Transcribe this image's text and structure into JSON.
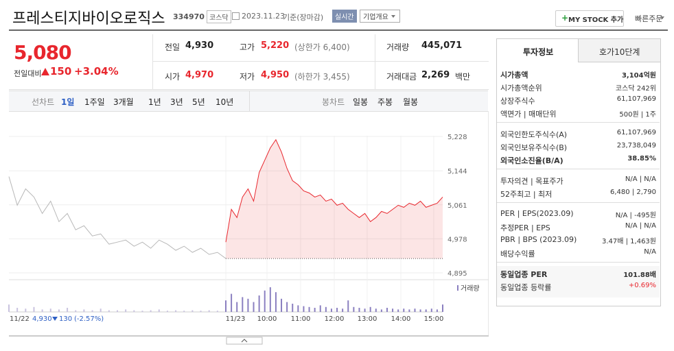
{
  "header": {
    "title": "프레스티지바이오로직스",
    "code": "334970",
    "market": "코스닥",
    "date": "2023.11.23",
    "basis": "기준(장마감)",
    "realtime": "실시간",
    "company_info": "기업개요",
    "my_stock": "MY STOCK 추가",
    "quick_order": "빠른주문"
  },
  "quote": {
    "price": "5,080",
    "change_label": "전일대비",
    "change": "150",
    "change_pct": "+3.04%",
    "rows": [
      [
        {
          "label": "전일",
          "value": "4,930"
        },
        {
          "label": "고가",
          "value": "5,220",
          "note": "(상한가 6,400)"
        },
        {
          "label": "거래량",
          "value": "445,071"
        }
      ],
      [
        {
          "label": "시가",
          "value": "4,970"
        },
        {
          "label": "저가",
          "value": "4,950",
          "note": "(하한가 3,455)"
        },
        {
          "label": "거래대금",
          "value": "2,269",
          "note": "백만"
        }
      ]
    ]
  },
  "chart_tabs": {
    "line_label": "선차트",
    "line_periods": [
      "1일",
      "1주일",
      "3개월",
      "1년",
      "3년",
      "5년",
      "10년"
    ],
    "candle_label": "봉차트",
    "candle_periods": [
      "일봉",
      "주봉",
      "월봉"
    ]
  },
  "chart_data": {
    "type": "line",
    "ylim": [
      4895,
      5228
    ],
    "yticks": [
      {
        "value": 5228,
        "label": "5,228"
      },
      {
        "value": 5144,
        "label": "5,144"
      },
      {
        "value": 5061,
        "label": "5,061"
      },
      {
        "value": 4978,
        "label": "4,978"
      },
      {
        "value": 4895,
        "label": "4,895"
      }
    ],
    "x_labels": [
      "11/23",
      "10:00",
      "11:00",
      "12:00",
      "13:00",
      "14:00",
      "15:00"
    ],
    "prev_close": 4930,
    "volume_label": "거래량",
    "prev_summary": {
      "date": "11/22",
      "close": "4,930",
      "change": "130",
      "change_pct": "(-2.57%)"
    },
    "series": [
      {
        "color": "#b8b8b8",
        "volume_color": "#c9c3df",
        "values": [
          5130,
          5060,
          5100,
          5080,
          5040,
          5070,
          5020,
          5040,
          5000,
          5010,
          4985,
          4990,
          4965,
          4970,
          4975,
          4960,
          4970,
          4955,
          4975,
          4965,
          4950,
          4960,
          4945,
          4955,
          4940,
          4945,
          4930
        ],
        "volume": [
          9000,
          5000,
          4000,
          6000,
          3000,
          4000,
          3000,
          5000,
          2000,
          3000,
          2000,
          4000,
          2000,
          2000,
          3000,
          2000,
          1500,
          2000,
          3000,
          1500,
          2000,
          1500,
          2000,
          1500,
          2000,
          1500,
          3000
        ]
      },
      {
        "color": "#e8262d",
        "volume_color": "#8a7fc0",
        "values": [
          4970,
          5050,
          5030,
          5080,
          5100,
          5070,
          5140,
          5170,
          5200,
          5220,
          5190,
          5150,
          5120,
          5110,
          5095,
          5090,
          5080,
          5085,
          5070,
          5075,
          5060,
          5065,
          5050,
          5040,
          5030,
          5040,
          5020,
          5030,
          5045,
          5040,
          5050,
          5060,
          5055,
          5065,
          5060,
          5070,
          5055,
          5060,
          5065,
          5080
        ],
        "volume": [
          14000,
          22000,
          12000,
          18000,
          16000,
          12000,
          20000,
          26000,
          30000,
          24000,
          16000,
          12000,
          10000,
          8000,
          7000,
          6000,
          5000,
          8000,
          6000,
          4000,
          5000,
          4000,
          14000,
          6000,
          5000,
          4000,
          6000,
          4000,
          3000,
          5000,
          4000,
          3000,
          4000,
          3000,
          4000,
          3000,
          3000,
          4000,
          3000,
          9000
        ]
      }
    ]
  },
  "info_panel": {
    "tabs": [
      "투자정보",
      "호가10단계"
    ],
    "sections": [
      [
        {
          "label": "시가총액",
          "value": "3,104억원"
        },
        {
          "label": "시가총액순위",
          "value": "코스닥 242위"
        },
        {
          "label": "상장주식수",
          "value": "61,107,969"
        },
        {
          "label": "액면가 | 매매단위",
          "value": "500원 | 1주"
        }
      ],
      [
        {
          "label": "외국인한도주식수(A)",
          "value": "61,107,969"
        },
        {
          "label": "외국인보유주식수(B)",
          "value": "23,738,049"
        },
        {
          "label": "외국인소진율(B/A)",
          "value": "38.85%"
        }
      ],
      [
        {
          "label": "투자의견 | 목표주가",
          "value": "N/A | N/A"
        },
        {
          "label": "52주최고 | 최저",
          "value": "6,480 | 2,790"
        }
      ],
      [
        {
          "label": "PER | EPS(2023.09)",
          "value": "N/A | -495원"
        },
        {
          "label": "추정PER | EPS",
          "value": "N/A | N/A"
        },
        {
          "label": "PBR | BPS (2023.09)",
          "value": "3.47배 | 1,463원"
        },
        {
          "label": "배당수익률",
          "value": "N/A"
        }
      ],
      [
        {
          "label": "동일업종 PER",
          "value": "101.88배"
        },
        {
          "label": "동일업종 등락률",
          "value": "+0.69%"
        }
      ]
    ]
  }
}
